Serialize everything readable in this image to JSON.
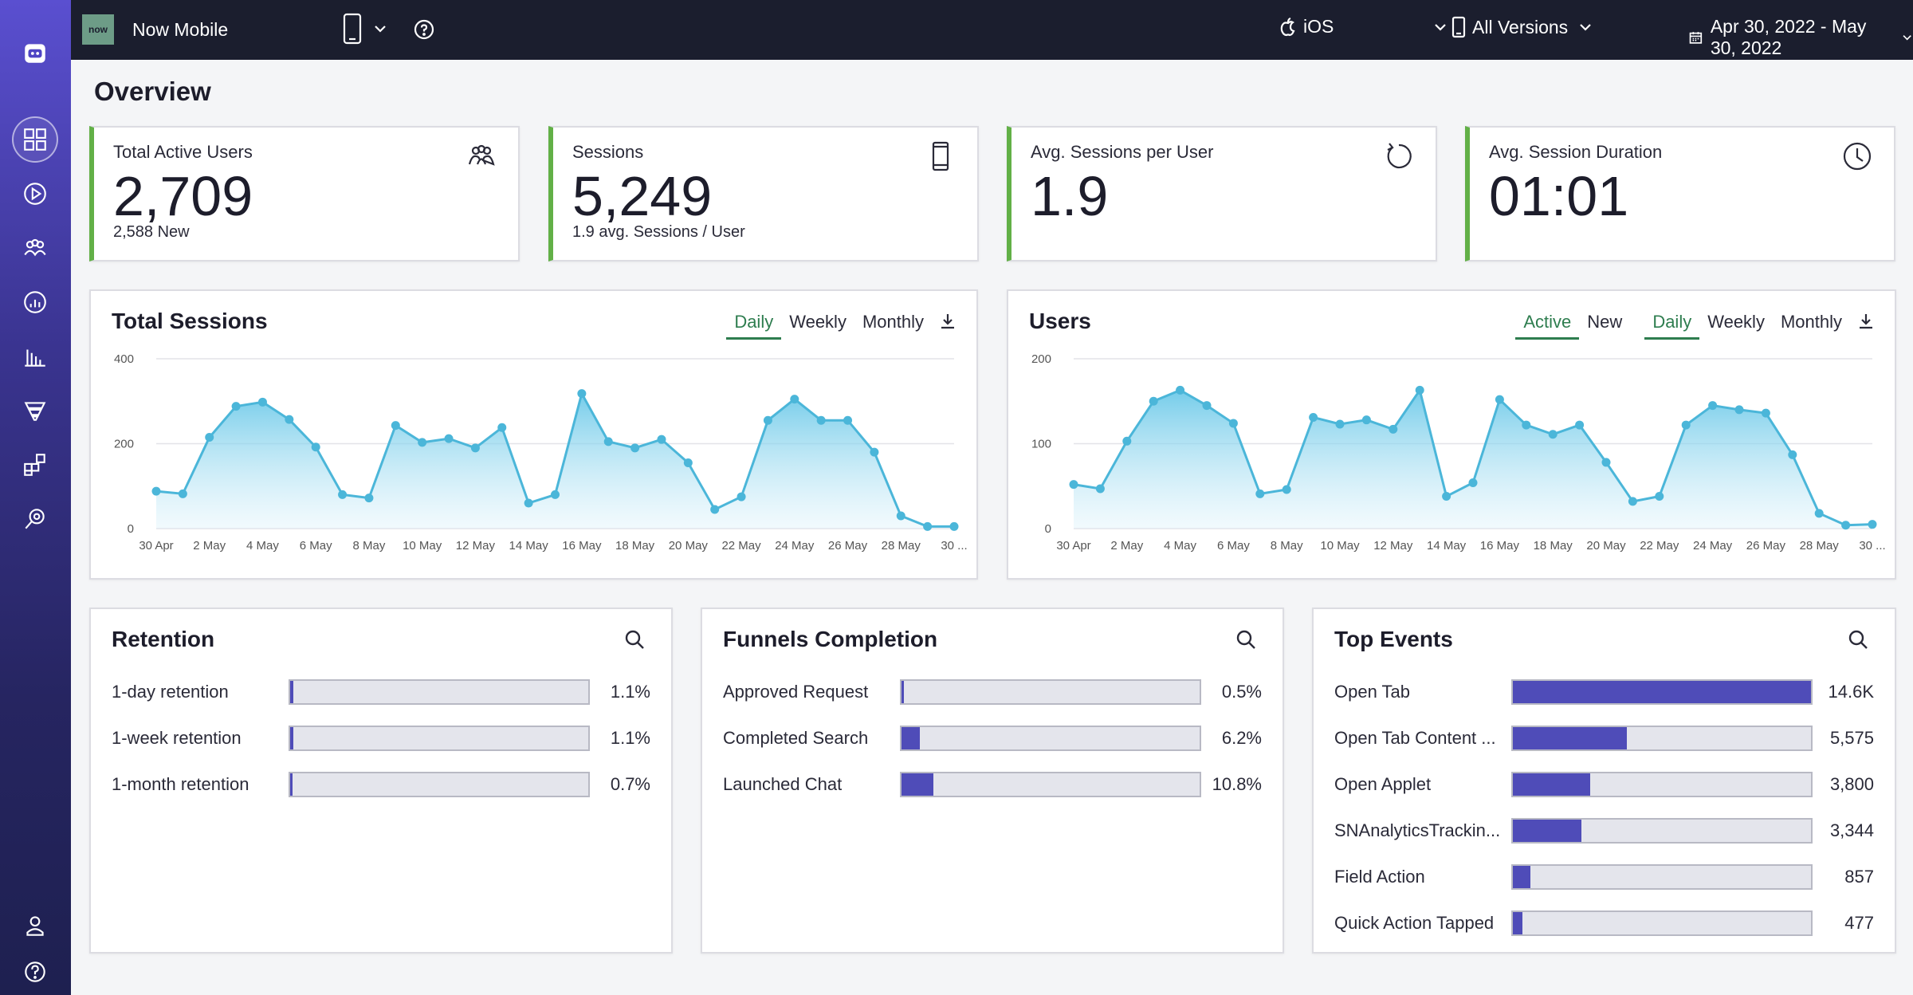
{
  "topbar": {
    "logo_text": "now",
    "app_title": "Now Mobile",
    "platform": "iOS",
    "versions": "All Versions",
    "date_range": "Apr 30, 2022 - May 30, 2022"
  },
  "page_title": "Overview",
  "stats": [
    {
      "label": "Total Active Users",
      "value": "2,709",
      "sub": "2,588 New",
      "icon": "users-icon"
    },
    {
      "label": "Sessions",
      "value": "5,249",
      "sub": "1.9 avg. Sessions / User",
      "icon": "phone-icon"
    },
    {
      "label": "Avg. Sessions per User",
      "value": "1.9",
      "sub": "",
      "icon": "refresh-icon"
    },
    {
      "label": "Avg. Session Duration",
      "value": "01:01",
      "sub": "",
      "icon": "clock-icon"
    }
  ],
  "sessions_panel": {
    "title": "Total Sessions",
    "tabs": [
      "Daily",
      "Weekly",
      "Monthly"
    ],
    "selected_tab": "Daily"
  },
  "users_panel": {
    "title": "Users",
    "toggle": [
      "Active",
      "New"
    ],
    "selected_toggle": "Active",
    "tabs": [
      "Daily",
      "Weekly",
      "Monthly"
    ],
    "selected_tab": "Daily"
  },
  "chart_data": [
    {
      "type": "area",
      "title": "Total Sessions",
      "x": [
        "30 Apr",
        "1 May",
        "2 May",
        "3 May",
        "4 May",
        "5 May",
        "6 May",
        "7 May",
        "8 May",
        "9 May",
        "10 May",
        "11 May",
        "12 May",
        "13 May",
        "14 May",
        "15 May",
        "16 May",
        "17 May",
        "18 May",
        "19 May",
        "20 May",
        "21 May",
        "22 May",
        "23 May",
        "24 May",
        "25 May",
        "26 May",
        "27 May",
        "28 May",
        "29 May",
        "30 May"
      ],
      "x_tick_labels": [
        "30 Apr",
        "2 May",
        "4 May",
        "6 May",
        "8 May",
        "10 May",
        "12 May",
        "14 May",
        "16 May",
        "18 May",
        "20 May",
        "22 May",
        "24 May",
        "26 May",
        "28 May",
        "30 ..."
      ],
      "y_ticks": [
        "0",
        "200",
        "400"
      ],
      "ylim": [
        0,
        400
      ],
      "values": [
        88,
        82,
        215,
        288,
        298,
        257,
        192,
        80,
        72,
        243,
        203,
        212,
        190,
        238,
        60,
        80,
        318,
        205,
        190,
        210,
        155,
        45,
        75,
        255,
        305,
        255,
        255,
        180,
        30,
        5,
        5
      ],
      "color": "#4bb6d9"
    },
    {
      "type": "area",
      "title": "Users",
      "x": [
        "30 Apr",
        "1 May",
        "2 May",
        "3 May",
        "4 May",
        "5 May",
        "6 May",
        "7 May",
        "8 May",
        "9 May",
        "10 May",
        "11 May",
        "12 May",
        "13 May",
        "14 May",
        "15 May",
        "16 May",
        "17 May",
        "18 May",
        "19 May",
        "20 May",
        "21 May",
        "22 May",
        "23 May",
        "24 May",
        "25 May",
        "26 May",
        "27 May",
        "28 May",
        "29 May",
        "30 May"
      ],
      "x_tick_labels": [
        "30 Apr",
        "2 May",
        "4 May",
        "6 May",
        "8 May",
        "10 May",
        "12 May",
        "14 May",
        "16 May",
        "18 May",
        "20 May",
        "22 May",
        "24 May",
        "26 May",
        "28 May",
        "30 ..."
      ],
      "y_ticks": [
        "0",
        "100",
        "200"
      ],
      "ylim": [
        0,
        200
      ],
      "values": [
        52,
        47,
        103,
        150,
        163,
        145,
        124,
        41,
        46,
        131,
        123,
        128,
        117,
        163,
        38,
        54,
        152,
        122,
        111,
        122,
        78,
        32,
        38,
        122,
        145,
        140,
        136,
        87,
        18,
        4,
        5
      ],
      "color": "#4bb6d9"
    }
  ],
  "retention": {
    "title": "Retention",
    "rows": [
      {
        "label": "1-day retention",
        "value": "1.1%",
        "fraction": 0.011
      },
      {
        "label": "1-week retention",
        "value": "1.1%",
        "fraction": 0.011
      },
      {
        "label": "1-month retention",
        "value": "0.7%",
        "fraction": 0.007
      }
    ]
  },
  "funnels": {
    "title": "Funnels Completion",
    "rows": [
      {
        "label": "Approved Request",
        "value": "0.5%",
        "fraction": 0.005
      },
      {
        "label": "Completed Search",
        "value": "6.2%",
        "fraction": 0.062
      },
      {
        "label": "Launched Chat",
        "value": "10.8%",
        "fraction": 0.108
      }
    ]
  },
  "top_events": {
    "title": "Top Events",
    "rows": [
      {
        "label": "Open Tab",
        "value": "14.6K",
        "fraction": 1.0
      },
      {
        "label": "Open Tab Content ...",
        "value": "5,575",
        "fraction": 0.382
      },
      {
        "label": "Open Applet",
        "value": "3,800",
        "fraction": 0.26
      },
      {
        "label": "SNAnalyticsTrackin...",
        "value": "3,344",
        "fraction": 0.229
      },
      {
        "label": "Field Action",
        "value": "857",
        "fraction": 0.059
      },
      {
        "label": "Quick Action Tapped",
        "value": "477",
        "fraction": 0.033
      }
    ]
  }
}
